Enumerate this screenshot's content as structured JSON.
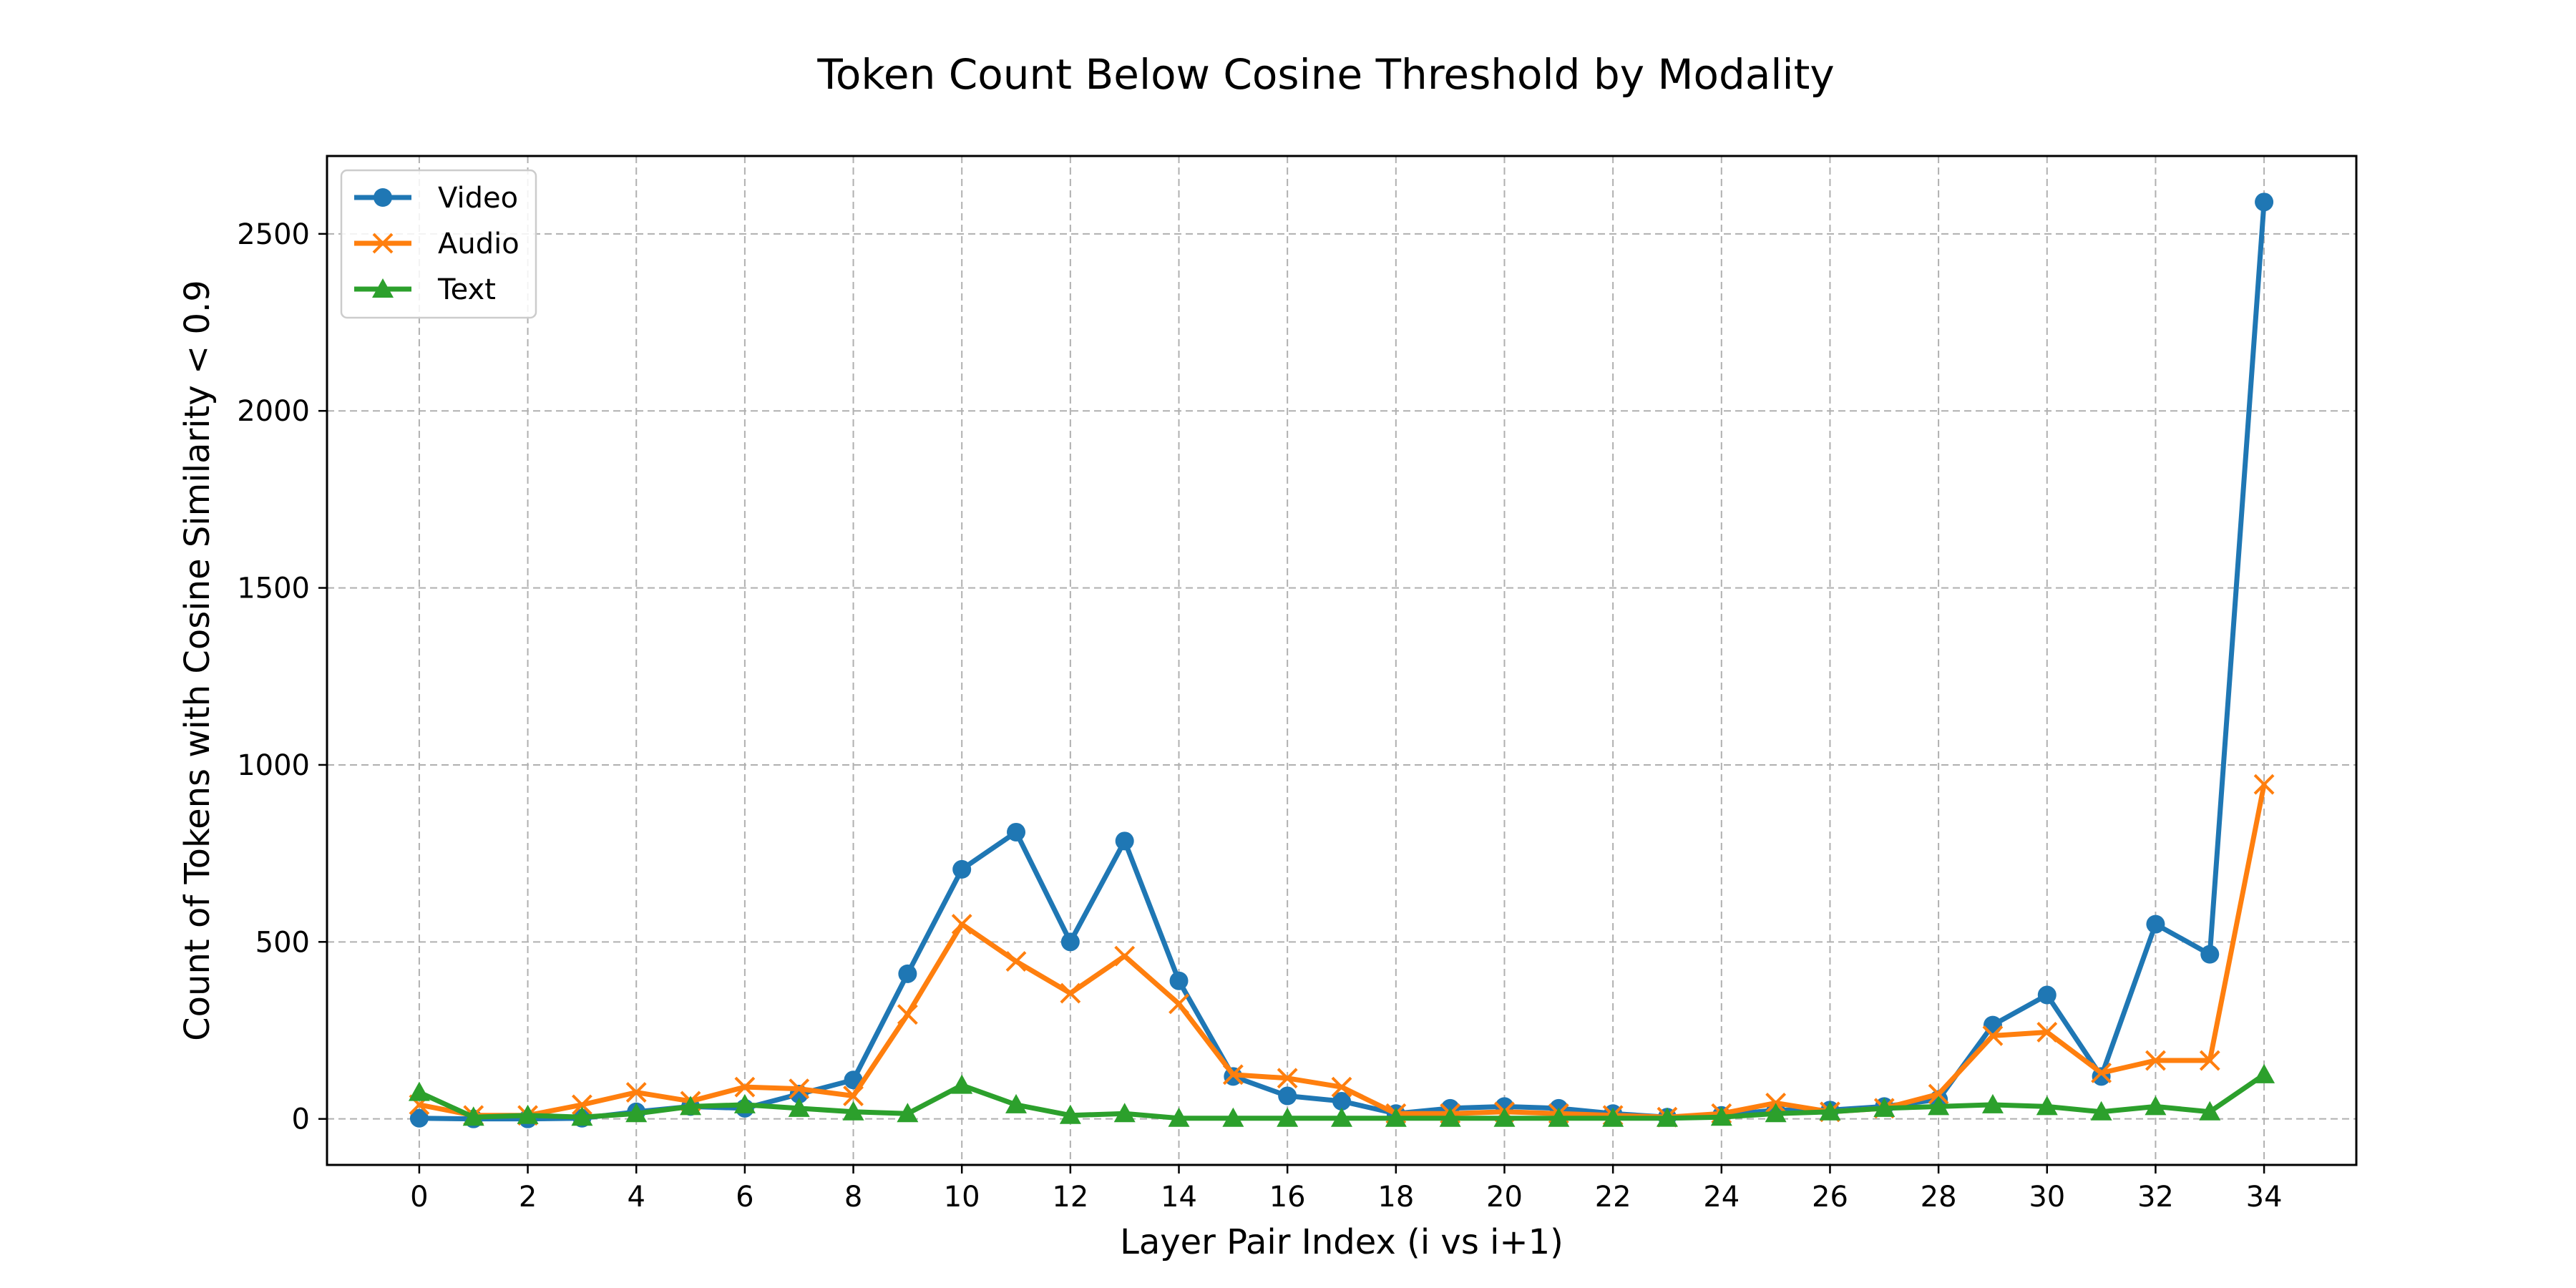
{
  "chart_data": {
    "type": "line",
    "title": "Token Count Below Cosine Threshold by Modality",
    "xlabel": "Layer Pair Index (i vs i+1)",
    "ylabel": "Count of Tokens with Cosine Similarity < 0.9",
    "xlim": [
      -1.7,
      35.7
    ],
    "ylim": [
      -130,
      2720
    ],
    "xticks": [
      0,
      2,
      4,
      6,
      8,
      10,
      12,
      14,
      16,
      18,
      20,
      22,
      24,
      26,
      28,
      30,
      32,
      34
    ],
    "yticks": [
      0,
      500,
      1000,
      1500,
      2000,
      2500
    ],
    "grid": true,
    "legend_position": "top-left",
    "x": [
      0,
      1,
      2,
      3,
      4,
      5,
      6,
      7,
      8,
      9,
      10,
      11,
      12,
      13,
      14,
      15,
      16,
      17,
      18,
      19,
      20,
      21,
      22,
      23,
      24,
      25,
      26,
      27,
      28,
      29,
      30,
      31,
      32,
      33,
      34
    ],
    "series": [
      {
        "name": "Video",
        "color": "#1f77b4",
        "marker": "circle",
        "values": [
          2,
          0,
          0,
          2,
          20,
          35,
          30,
          70,
          110,
          410,
          705,
          810,
          500,
          785,
          390,
          120,
          65,
          50,
          15,
          30,
          35,
          30,
          15,
          5,
          10,
          25,
          25,
          35,
          55,
          265,
          350,
          120,
          550,
          465,
          2590
        ]
      },
      {
        "name": "Audio",
        "color": "#ff7f0e",
        "marker": "x",
        "values": [
          40,
          10,
          10,
          40,
          75,
          50,
          90,
          85,
          65,
          295,
          550,
          445,
          355,
          460,
          325,
          125,
          115,
          90,
          15,
          15,
          20,
          15,
          10,
          5,
          15,
          45,
          20,
          30,
          70,
          235,
          245,
          130,
          165,
          165,
          945
        ]
      },
      {
        "name": "Text",
        "color": "#2ca02c",
        "marker": "triangle",
        "values": [
          75,
          5,
          10,
          5,
          15,
          35,
          40,
          30,
          20,
          15,
          95,
          40,
          10,
          15,
          2,
          2,
          2,
          2,
          2,
          2,
          2,
          2,
          2,
          2,
          5,
          15,
          20,
          30,
          35,
          40,
          35,
          20,
          35,
          20,
          125
        ]
      }
    ]
  }
}
